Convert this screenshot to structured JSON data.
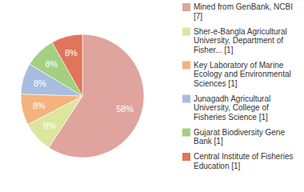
{
  "chart_data": {
    "type": "pie",
    "categories": [
      "Mined from GenBank, NCBI [7]",
      "Sher-e-Bangla Agricultural University, Department of Fisher... [1]",
      "Key Laboratory of Marine Ecology and Environmental Sciences [1]",
      "Junagadh Agricultural University, College of Fisheries Science [1]",
      "Gujarat Biodiversity Gene Bank [1]",
      "Central Institute of Fisheries Education [1]"
    ],
    "values": [
      58,
      8,
      8,
      8,
      8,
      8
    ],
    "value_labels": [
      "58%",
      "8%",
      "8%",
      "8%",
      "8%",
      "8%"
    ],
    "colors": [
      "#e0a49e",
      "#dde69e",
      "#f4b27c",
      "#a8bddf",
      "#a5cf80",
      "#e0755a"
    ],
    "data_labels": true,
    "legend": "right"
  }
}
